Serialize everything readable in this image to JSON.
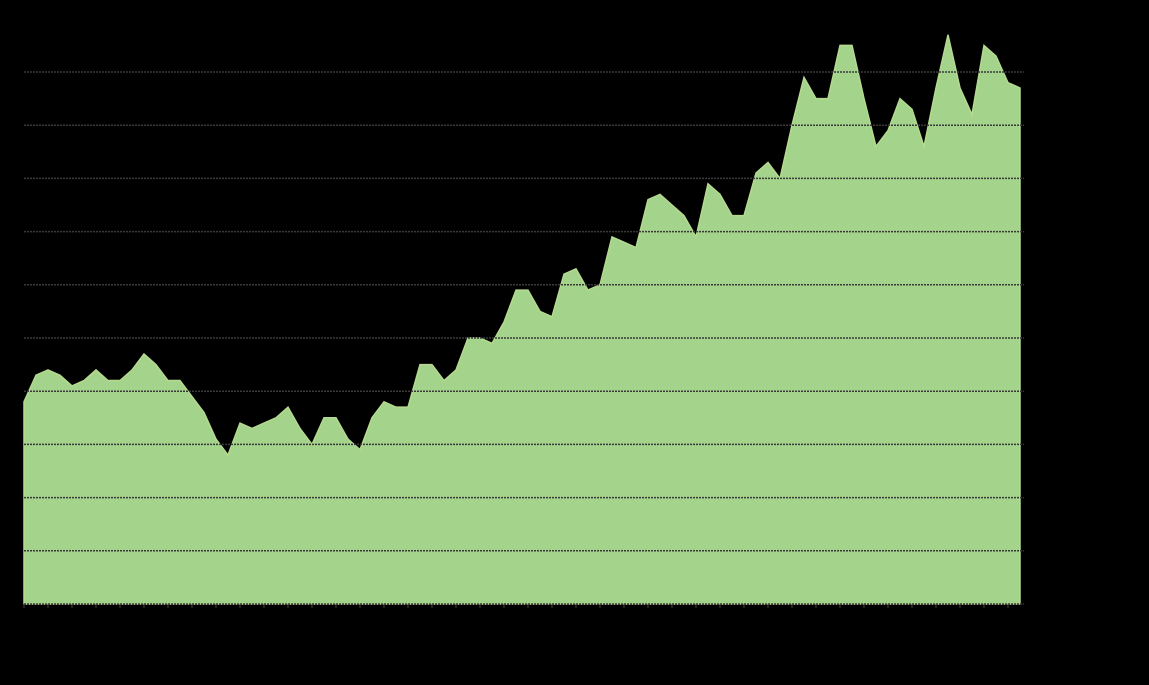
{
  "chart_data": {
    "type": "area",
    "x": [
      0,
      1,
      2,
      3,
      4,
      5,
      6,
      7,
      8,
      9,
      10,
      11,
      12,
      13,
      14,
      15,
      16,
      17,
      18,
      19,
      20,
      21,
      22,
      23,
      24,
      25,
      26,
      27,
      28,
      29,
      30,
      31,
      32,
      33,
      34,
      35,
      36,
      37,
      38,
      39,
      40,
      41,
      42,
      43,
      44,
      45,
      46,
      47,
      48,
      49,
      50,
      51,
      52,
      53,
      54,
      55,
      56,
      57,
      58,
      59,
      60,
      61,
      62,
      63,
      64,
      65,
      66,
      67,
      68,
      69,
      70,
      71,
      72,
      73,
      74,
      75,
      76,
      77,
      78,
      79,
      80,
      81,
      82,
      83
    ],
    "series": [
      {
        "color": "#a4d38b",
        "values": [
          3.8,
          4.3,
          4.4,
          4.3,
          4.1,
          4.2,
          4.4,
          4.2,
          4.2,
          4.4,
          4.7,
          4.5,
          4.2,
          4.2,
          3.9,
          3.6,
          3.1,
          2.8,
          3.4,
          3.3,
          3.4,
          3.5,
          3.7,
          3.3,
          3.0,
          3.5,
          3.5,
          3.1,
          2.9,
          3.5,
          3.8,
          3.7,
          3.7,
          4.5,
          4.5,
          4.2,
          4.4,
          5.0,
          5.0,
          4.9,
          5.3,
          5.9,
          5.9,
          5.5,
          5.4,
          6.2,
          6.3,
          5.9,
          6.0,
          6.9,
          6.8,
          6.7,
          7.6,
          7.7,
          7.5,
          7.3,
          6.9,
          7.9,
          7.7,
          7.3,
          7.3,
          8.1,
          8.3,
          8.0,
          9.0,
          9.9,
          9.5,
          9.5,
          10.5,
          10.5,
          9.5,
          8.6,
          8.9,
          9.5,
          9.3,
          8.6,
          9.7,
          10.7,
          9.7,
          9.2,
          10.5,
          10.3,
          9.8,
          9.7
        ]
      }
    ],
    "xlim": [
      0,
      83
    ],
    "xticks": [
      0,
      2,
      4,
      6,
      8,
      10,
      12,
      14,
      16,
      18,
      20,
      22,
      24,
      26,
      28,
      30,
      32,
      34,
      36,
      38,
      40,
      42,
      44,
      46,
      48,
      50,
      52,
      54,
      56,
      58,
      60,
      62,
      64,
      66,
      68,
      70,
      72,
      74,
      76,
      78,
      80,
      82
    ],
    "ylim": [
      0,
      11
    ],
    "yticks": [
      0,
      1,
      2,
      3,
      4,
      5,
      6,
      7,
      8,
      9,
      10
    ],
    "grid": true
  }
}
